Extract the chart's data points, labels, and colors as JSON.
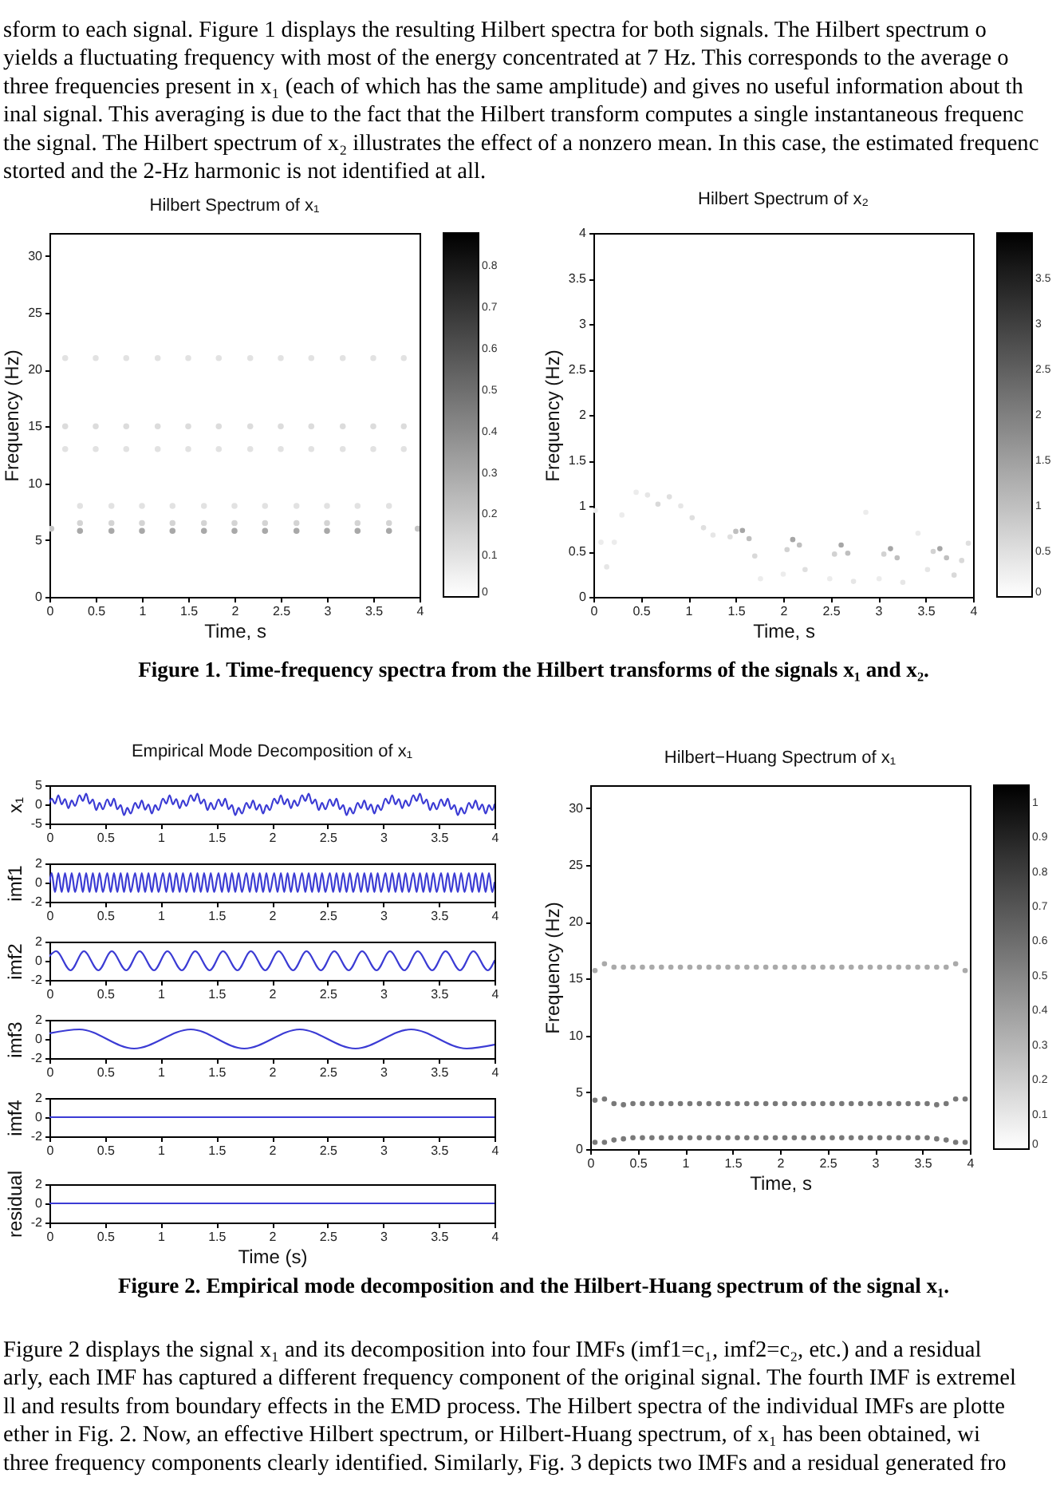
{
  "chart_data": [
    {
      "type": "other",
      "annotations": [
        "sform to each signal. Figure 1 displays the resulting Hilbert spectra for both signals. The Hilbert spectrum o",
        "yields a fluctuating frequency with most of the energy concentrated at 7 Hz. This corresponds to the average o",
        "three frequencies present in x₁ (each of which has the same amplitude) and gives no useful information about th",
        "inal signal. This averaging is due to the fact that the Hilbert transform computes a single instantaneous frequenc",
        "the signal. The Hilbert spectrum of x₂ illustrates the effect of a nonzero mean. In this case, the estimated frequenc",
        "storted and the 2-Hz harmonic is not identified at all."
      ]
    },
    {
      "type": "scatter",
      "title": "Hilbert Spectrum of x₁",
      "xlabel": "Time, s",
      "ylabel": "Frequency (Hz)",
      "marker": "circle",
      "x": [
        0.33,
        0.67,
        1,
        1.33,
        1.67,
        2,
        2.33,
        2.67,
        3,
        3.33,
        3.67,
        0.02,
        3.98,
        0.33,
        0.67,
        1,
        1.33,
        1.67,
        2,
        2.33,
        2.67,
        3,
        3.33,
        3.67,
        0.33,
        0.67,
        1,
        1.33,
        1.67,
        2,
        2.33,
        2.67,
        3,
        3.33,
        3.67,
        0.17,
        0.5,
        0.83,
        1.17,
        1.5,
        1.83,
        2.17,
        2.5,
        2.83,
        3.17,
        3.5,
        3.83,
        0.17,
        0.5,
        0.83,
        1.17,
        1.5,
        1.83,
        2.17,
        2.5,
        2.83,
        3.17,
        3.5,
        3.83,
        0.17,
        0.5,
        0.83,
        1.17,
        1.5,
        1.83,
        2.17,
        2.5,
        2.83,
        3.17,
        3.5,
        3.83
      ],
      "values": [
        5.8,
        5.8,
        5.8,
        5.8,
        5.8,
        5.8,
        5.8,
        5.8,
        5.8,
        5.8,
        5.8,
        6,
        6,
        6.5,
        6.5,
        6.5,
        6.5,
        6.5,
        6.5,
        6.5,
        6.5,
        6.5,
        6.5,
        6.5,
        8,
        8,
        8,
        8,
        8,
        8,
        8,
        8,
        8,
        8,
        8,
        13,
        13,
        13,
        13,
        13,
        13,
        13,
        13,
        13,
        13,
        13,
        13,
        15,
        15,
        15,
        15,
        15,
        15,
        15,
        15,
        15,
        15,
        15,
        15,
        21,
        21,
        21,
        21,
        21,
        21,
        21,
        21,
        21,
        21,
        21,
        21
      ],
      "cvalues": [
        0.3,
        0.3,
        0.3,
        0.3,
        0.3,
        0.3,
        0.3,
        0.3,
        0.3,
        0.3,
        0.3,
        0.2,
        0.2,
        0.15,
        0.15,
        0.15,
        0.15,
        0.15,
        0.15,
        0.15,
        0.15,
        0.15,
        0.15,
        0.15,
        0.1,
        0.1,
        0.1,
        0.1,
        0.1,
        0.1,
        0.1,
        0.1,
        0.1,
        0.1,
        0.1,
        0.1,
        0.1,
        0.1,
        0.1,
        0.1,
        0.1,
        0.1,
        0.1,
        0.1,
        0.1,
        0.1,
        0.1,
        0.12,
        0.12,
        0.12,
        0.12,
        0.12,
        0.12,
        0.12,
        0.12,
        0.12,
        0.12,
        0.12,
        0.12,
        0.1,
        0.1,
        0.1,
        0.1,
        0.1,
        0.1,
        0.1,
        0.1,
        0.1,
        0.1,
        0.1,
        0.1
      ],
      "xlim": [
        0,
        4
      ],
      "xticks": [
        0,
        0.5,
        1,
        1.5,
        2,
        2.5,
        3,
        3.5,
        4
      ],
      "ylim": [
        0,
        32
      ],
      "yticks": [
        0,
        5,
        10,
        15,
        20,
        25,
        30
      ],
      "clim": [
        0,
        0.88
      ],
      "cticks": [
        0,
        0.1,
        0.2,
        0.3,
        0.4,
        0.5,
        0.6,
        0.7,
        0.8
      ]
    },
    {
      "type": "scatter",
      "title": "Hilbert Spectrum of x₂",
      "xlabel": "Time, s",
      "ylabel": "Frequency (Hz)",
      "marker": "circle",
      "x": [
        0.02,
        0.08,
        0.14,
        0.22,
        0.3,
        0.45,
        0.57,
        0.68,
        0.8,
        0.92,
        1.04,
        1.16,
        1.26,
        1.44,
        1.5,
        1.57,
        1.64,
        1.7,
        1.76,
        2,
        2.04,
        2.1,
        2.17,
        2.23,
        2.49,
        2.54,
        2.61,
        2.68,
        2.74,
        2.87,
        3.01,
        3.06,
        3.13,
        3.2,
        3.26,
        3.42,
        3.52,
        3.58,
        3.65,
        3.72,
        3.8,
        3.88,
        3.95
      ],
      "values": [
        0.95,
        0.6,
        0.33,
        0.6,
        0.9,
        1.15,
        1.12,
        1.02,
        1.1,
        1,
        0.87,
        0.76,
        0.68,
        0.66,
        0.72,
        0.73,
        0.64,
        0.45,
        0.2,
        0.25,
        0.52,
        0.63,
        0.57,
        0.3,
        0.2,
        0.47,
        0.57,
        0.48,
        0.17,
        0.93,
        0.2,
        0.47,
        0.53,
        0.43,
        0.16,
        0.7,
        0.3,
        0.5,
        0.53,
        0.43,
        0.24,
        0.4,
        0.59
      ],
      "cvalues": [
        0.3,
        0.3,
        0.4,
        0.3,
        0.3,
        0.3,
        0.4,
        0.6,
        0.5,
        0.4,
        0.5,
        0.5,
        0.4,
        0.5,
        1,
        1.4,
        1,
        0.6,
        0.3,
        0.3,
        0.7,
        1.4,
        1,
        0.5,
        0.3,
        0.7,
        1.4,
        1,
        0.4,
        0.3,
        0.3,
        0.7,
        1.4,
        1,
        0.4,
        0.3,
        0.4,
        0.7,
        1.4,
        1,
        0.6,
        0.6,
        0.5
      ],
      "xlim": [
        0,
        4
      ],
      "xticks": [
        0,
        0.5,
        1,
        1.5,
        2,
        2.5,
        3,
        3.5,
        4
      ],
      "ylim": [
        0,
        4
      ],
      "yticks": [
        0,
        0.5,
        1,
        1.5,
        2,
        2.5,
        3,
        3.5,
        4
      ],
      "clim": [
        0,
        4
      ],
      "cticks": [
        0,
        0.5,
        1,
        1.5,
        2,
        2.5,
        3,
        3.5
      ]
    },
    {
      "type": "other",
      "annotations": [
        "Figure 1. Time-frequency spectra from the Hilbert transforms of the signals x₁ and x₂."
      ]
    },
    {
      "type": "line",
      "title": "Empirical Mode Decomposition of x₁",
      "ylabel": "x₁",
      "color": "#3b3bd4",
      "x": [
        0,
        0.02,
        0.05,
        0.08,
        0.11,
        0.14,
        0.17,
        0.2,
        0.23,
        0.27,
        0.3,
        0.33,
        0.36,
        0.39,
        0.42,
        0.45,
        0.48,
        0.52,
        0.55,
        0.58,
        0.61,
        0.64,
        0.67,
        0.7,
        0.73,
        0.77,
        0.8,
        0.83,
        0.86,
        0.89,
        0.92,
        0.95,
        0.98,
        1.02,
        1.05,
        1.08,
        1.11,
        1.14,
        1.17,
        1.2,
        1.23,
        1.27,
        1.3,
        1.33,
        1.36,
        1.39,
        1.42,
        1.45,
        1.48,
        1.52,
        1.55,
        1.58,
        1.61,
        1.64,
        1.67,
        1.7,
        1.73,
        1.77,
        1.8,
        1.83,
        1.86,
        1.89,
        1.92,
        1.95,
        1.98,
        2.02,
        2.05,
        2.08,
        2.11,
        2.14,
        2.17,
        2.2,
        2.23,
        2.27,
        2.3,
        2.33,
        2.36,
        2.39,
        2.42,
        2.45,
        2.48,
        2.52,
        2.55,
        2.58,
        2.61,
        2.64,
        2.67,
        2.7,
        2.73,
        2.77,
        2.8,
        2.83,
        2.86,
        2.89,
        2.92,
        2.95,
        2.98,
        3.02,
        3.05,
        3.08,
        3.11,
        3.14,
        3.17,
        3.2,
        3.23,
        3.27,
        3.3,
        3.33,
        3.36,
        3.39,
        3.42,
        3.45,
        3.48,
        3.52,
        3.55,
        3.58,
        3.61,
        3.64,
        3.67,
        3.7,
        3.73,
        3.77,
        3.8,
        3.83,
        3.86,
        3.89,
        3.92,
        3.95,
        3.98,
        4
      ],
      "values": [
        0.5,
        1.5,
        0.2,
        2.4,
        0,
        1.4,
        -1,
        1,
        -0.4,
        2.4,
        0.9,
        2.8,
        0.2,
        1.3,
        -1.5,
        0.4,
        -1.3,
        1.3,
        -0.4,
        1.5,
        -1.3,
        -0.2,
        -2.8,
        -0.9,
        -2.4,
        0.4,
        -1,
        1,
        -1.4,
        0,
        -2.4,
        -0.2,
        -1.5,
        1.5,
        0.2,
        2.4,
        0,
        1.4,
        -1,
        1,
        -0.4,
        2.4,
        0.9,
        2.8,
        0.2,
        1.3,
        -1.5,
        0.4,
        -1.3,
        1.3,
        -0.4,
        1.5,
        -1.3,
        -0.2,
        -2.8,
        -0.9,
        -2.4,
        0.4,
        -1,
        1,
        -1.4,
        0,
        -2.4,
        -0.2,
        -1.5,
        1.5,
        0.2,
        2.4,
        0,
        1.4,
        -1,
        1,
        -0.4,
        2.4,
        0.9,
        2.8,
        0.2,
        1.3,
        -1.5,
        0.4,
        -1.3,
        1.3,
        -0.4,
        1.5,
        -1.3,
        -0.2,
        -2.8,
        -0.9,
        -2.4,
        0.4,
        -1,
        1,
        -1.4,
        0,
        -2.4,
        -0.2,
        -1.5,
        1.5,
        0.2,
        2.4,
        0,
        1.4,
        -1,
        1,
        -0.4,
        2.4,
        0.9,
        2.8,
        0.2,
        1.3,
        -1.5,
        0.4,
        -1.3,
        1.3,
        -0.4,
        1.5,
        -1.3,
        -0.2,
        -2.8,
        -0.9,
        -2.4,
        0.4,
        -1,
        1,
        -1.4,
        0,
        -2.4,
        -0.2,
        -1.5,
        0
      ],
      "xlim": [
        0,
        4
      ],
      "xticks": [
        0,
        0.5,
        1,
        1.5,
        2,
        2.5,
        3,
        3.5,
        4
      ],
      "ylim": [
        -5,
        5
      ],
      "yticks": [
        -5,
        0,
        5
      ]
    },
    {
      "type": "line",
      "ylabel": "imf1",
      "color": "#3b3bd4",
      "x": [
        0,
        0.02,
        0.05,
        0.08,
        0.11,
        0.14,
        0.17,
        0.2,
        0.23,
        0.27,
        0.3,
        0.33,
        0.36,
        0.39,
        0.42,
        0.45,
        0.48,
        0.52,
        0.55,
        0.58,
        0.61,
        0.64,
        0.67,
        0.7,
        0.73,
        0.77,
        0.8,
        0.83,
        0.86,
        0.89,
        0.92,
        0.95,
        0.98,
        1.02,
        1.05,
        1.08,
        1.11,
        1.14,
        1.17,
        1.2,
        1.23,
        1.27,
        1.3,
        1.33,
        1.36,
        1.39,
        1.42,
        1.45,
        1.48,
        1.52,
        1.55,
        1.58,
        1.61,
        1.64,
        1.67,
        1.7,
        1.73,
        1.77,
        1.8,
        1.83,
        1.86,
        1.89,
        1.92,
        1.95,
        1.98,
        2.02,
        2.05,
        2.08,
        2.11,
        2.14,
        2.17,
        2.2,
        2.23,
        2.27,
        2.3,
        2.33,
        2.36,
        2.39,
        2.42,
        2.45,
        2.48,
        2.52,
        2.55,
        2.58,
        2.61,
        2.64,
        2.67,
        2.7,
        2.73,
        2.77,
        2.8,
        2.83,
        2.86,
        2.89,
        2.92,
        2.95,
        2.98,
        3.02,
        3.05,
        3.08,
        3.11,
        3.14,
        3.17,
        3.2,
        3.23,
        3.27,
        3.3,
        3.33,
        3.36,
        3.39,
        3.42,
        3.45,
        3.48,
        3.52,
        3.55,
        3.58,
        3.61,
        3.64,
        3.67,
        3.7,
        3.73,
        3.77,
        3.8,
        3.83,
        3.86,
        3.89,
        3.92,
        3.95,
        3.98,
        4
      ],
      "values": [
        0,
        1,
        -1,
        1,
        -1,
        1,
        -1,
        1,
        -1,
        1,
        -1,
        1,
        -1,
        1,
        -1,
        1,
        -1,
        1,
        -1,
        1,
        -1,
        1,
        -1,
        1,
        -1,
        1,
        -1,
        1,
        -1,
        1,
        -1,
        1,
        -1,
        1,
        -1,
        1,
        -1,
        1,
        -1,
        1,
        -1,
        1,
        -1,
        1,
        -1,
        1,
        -1,
        1,
        -1,
        1,
        -1,
        1,
        -1,
        1,
        -1,
        1,
        -1,
        1,
        -1,
        1,
        -1,
        1,
        -1,
        1,
        -1,
        1,
        -1,
        1,
        -1,
        1,
        -1,
        1,
        -1,
        1,
        -1,
        1,
        -1,
        1,
        -1,
        1,
        -1,
        1,
        -1,
        1,
        -1,
        1,
        -1,
        1,
        -1,
        1,
        -1,
        1,
        -1,
        1,
        -1,
        1,
        -1,
        1,
        -1,
        1,
        -1,
        1,
        -1,
        1,
        -1,
        1,
        -1,
        1,
        -1,
        1,
        -1,
        1,
        -1,
        1,
        -1,
        1,
        -1,
        1,
        -1,
        1,
        -1,
        1,
        -1,
        1,
        -1,
        1,
        -1,
        1,
        -1,
        0
      ],
      "xlim": [
        0,
        4
      ],
      "xticks": [
        0,
        0.5,
        1,
        1.5,
        2,
        2.5,
        3,
        3.5,
        4
      ],
      "ylim": [
        -2,
        2
      ],
      "yticks": [
        -2,
        0,
        2
      ]
    },
    {
      "type": "line",
      "ylabel": "imf2",
      "color": "#3b3bd4",
      "x": [
        0,
        0.06,
        0.19,
        0.31,
        0.44,
        0.56,
        0.69,
        0.81,
        0.94,
        1.06,
        1.19,
        1.31,
        1.44,
        1.56,
        1.69,
        1.81,
        1.94,
        2.06,
        2.19,
        2.31,
        2.44,
        2.56,
        2.69,
        2.81,
        2.94,
        3.06,
        3.19,
        3.31,
        3.44,
        3.56,
        3.69,
        3.81,
        3.94,
        4
      ],
      "values": [
        0.5,
        1,
        -1,
        1,
        -1,
        1,
        -1,
        1,
        -1,
        1,
        -1,
        1,
        -1,
        1,
        -1,
        1,
        -1,
        1,
        -1,
        1,
        -1,
        1,
        -1,
        1,
        -1,
        1,
        -1,
        1,
        -1,
        1,
        -1,
        1,
        -1,
        0
      ],
      "xlim": [
        0,
        4
      ],
      "xticks": [
        0,
        0.5,
        1,
        1.5,
        2,
        2.5,
        3,
        3.5,
        4
      ],
      "ylim": [
        -2,
        2
      ],
      "yticks": [
        -2,
        0,
        2
      ]
    },
    {
      "type": "line",
      "ylabel": "imf3",
      "color": "#3b3bd4",
      "x": [
        0,
        0.27,
        0.76,
        1.27,
        1.75,
        2.25,
        2.75,
        3.25,
        3.75,
        4
      ],
      "values": [
        0.6,
        1,
        -1,
        1,
        -1,
        1,
        -1,
        1,
        -1,
        -0.6
      ],
      "xlim": [
        0,
        4
      ],
      "xticks": [
        0,
        0.5,
        1,
        1.5,
        2,
        2.5,
        3,
        3.5,
        4
      ],
      "ylim": [
        -2,
        2
      ],
      "yticks": [
        -2,
        0,
        2
      ]
    },
    {
      "type": "line",
      "ylabel": "imf4",
      "color": "#3b3bd4",
      "x": [
        0,
        4
      ],
      "values": [
        0,
        0
      ],
      "xlim": [
        0,
        4
      ],
      "xticks": [
        0,
        0.5,
        1,
        1.5,
        2,
        2.5,
        3,
        3.5,
        4
      ],
      "ylim": [
        -2,
        2
      ],
      "yticks": [
        -2,
        0,
        2
      ]
    },
    {
      "type": "line",
      "ylabel": "residual",
      "xlabel": "Time (s)",
      "color": "#3b3bd4",
      "x": [
        0,
        4
      ],
      "values": [
        0,
        0
      ],
      "xlim": [
        0,
        4
      ],
      "xticks": [
        0,
        0.5,
        1,
        1.5,
        2,
        2.5,
        3,
        3.5,
        4
      ],
      "ylim": [
        -2,
        2
      ],
      "yticks": [
        -2,
        0,
        2
      ]
    },
    {
      "type": "scatter",
      "title": "Hilbert−Huang Spectrum of x₁",
      "xlabel": "Time, s",
      "ylabel": "Frequency (Hz)",
      "marker": "circle",
      "x": [
        0.05,
        0.15,
        0.25,
        0.35,
        0.45,
        0.55,
        0.65,
        0.75,
        0.85,
        0.95,
        1.05,
        1.15,
        1.25,
        1.35,
        1.45,
        1.55,
        1.65,
        1.75,
        1.85,
        1.95,
        2.05,
        2.15,
        2.25,
        2.35,
        2.45,
        2.55,
        2.65,
        2.75,
        2.85,
        2.95,
        3.05,
        3.15,
        3.25,
        3.35,
        3.45,
        3.55,
        3.65,
        3.75,
        3.85,
        3.95
      ],
      "series": [
        {
          "values": [
            15.7,
            16.3,
            16,
            16,
            16,
            16,
            16,
            16,
            16,
            16,
            16,
            16,
            16,
            16,
            16,
            16,
            16,
            16,
            16,
            16,
            16,
            16,
            16,
            16,
            16,
            16,
            16,
            16,
            16,
            16,
            16,
            16,
            16,
            16,
            16,
            16,
            16,
            16,
            16.3,
            15.7
          ],
          "cvalues": [
            0.35,
            0.35,
            0.35,
            0.35,
            0.35,
            0.35,
            0.35,
            0.35,
            0.35,
            0.35,
            0.35,
            0.35,
            0.35,
            0.35,
            0.35,
            0.35,
            0.35,
            0.35,
            0.35,
            0.35,
            0.35,
            0.35,
            0.35,
            0.35,
            0.35,
            0.35,
            0.35,
            0.35,
            0.35,
            0.35,
            0.35,
            0.35,
            0.35,
            0.35,
            0.35,
            0.35,
            0.35,
            0.35,
            0.35,
            0.35
          ]
        },
        {
          "values": [
            4.3,
            4.4,
            4,
            3.9,
            4,
            4,
            4,
            4,
            4,
            4,
            4,
            4,
            4,
            4,
            4,
            4,
            4,
            4,
            4,
            4,
            4,
            4,
            4,
            4,
            4,
            4,
            4,
            4,
            4,
            4,
            4,
            4,
            4,
            4,
            4,
            4,
            3.9,
            4,
            4.4,
            4.4
          ],
          "cvalues": [
            0.55,
            0.55,
            0.55,
            0.55,
            0.55,
            0.55,
            0.55,
            0.55,
            0.55,
            0.55,
            0.55,
            0.55,
            0.55,
            0.55,
            0.55,
            0.55,
            0.55,
            0.55,
            0.55,
            0.55,
            0.55,
            0.55,
            0.55,
            0.55,
            0.55,
            0.55,
            0.55,
            0.55,
            0.55,
            0.55,
            0.55,
            0.55,
            0.55,
            0.55,
            0.55,
            0.55,
            0.55,
            0.55,
            0.55,
            0.55
          ]
        },
        {
          "values": [
            0.6,
            0.6,
            0.8,
            0.9,
            1,
            1,
            1,
            1,
            1,
            1,
            1,
            1,
            1,
            1,
            1,
            1,
            1,
            1,
            1,
            1,
            1,
            1,
            1,
            1,
            1,
            1,
            1,
            1,
            1,
            1,
            1,
            1,
            1,
            1,
            1,
            1,
            0.9,
            0.8,
            0.6,
            0.6
          ],
          "cvalues": [
            0.55,
            0.55,
            0.55,
            0.55,
            0.55,
            0.55,
            0.55,
            0.55,
            0.55,
            0.55,
            0.55,
            0.55,
            0.55,
            0.55,
            0.55,
            0.55,
            0.55,
            0.55,
            0.55,
            0.55,
            0.55,
            0.55,
            0.55,
            0.55,
            0.55,
            0.55,
            0.55,
            0.55,
            0.55,
            0.55,
            0.55,
            0.55,
            0.55,
            0.55,
            0.55,
            0.55,
            0.55,
            0.55,
            0.55,
            0.55
          ]
        }
      ],
      "xlim": [
        0,
        4
      ],
      "xticks": [
        0,
        0.5,
        1,
        1.5,
        2,
        2.5,
        3,
        3.5,
        4
      ],
      "ylim": [
        0,
        32
      ],
      "yticks": [
        0,
        5,
        10,
        15,
        20,
        25,
        30
      ],
      "clim": [
        0,
        1.05
      ],
      "cticks": [
        0,
        0.1,
        0.2,
        0.3,
        0.4,
        0.5,
        0.6,
        0.7,
        0.8,
        0.9,
        1
      ]
    },
    {
      "type": "other",
      "annotations": [
        "Figure 2. Empirical mode decomposition and the Hilbert-Huang spectrum of the signal x₁.",
        "Figure 2 displays the signal x₁ and its decomposition into four IMFs (imf1=c₁, imf2=c₂, etc.) and a residual",
        "arly, each IMF has captured a different frequency component of the original signal. The fourth IMF is extremel",
        "ll and results from boundary effects in the EMD process. The Hilbert spectra of the individual IMFs are plotte",
        "ether in Fig. 2. Now, an effective Hilbert spectrum, or Hilbert-Huang spectrum, of x₁ has been obtained, wi",
        "three frequency components clearly identified. Similarly, Fig. 3 depicts two IMFs and a residual generated fro"
      ]
    }
  ]
}
